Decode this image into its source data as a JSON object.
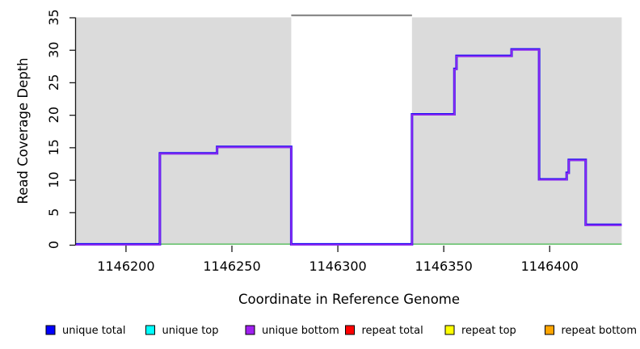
{
  "chart_data": {
    "type": "line",
    "subtype": "step-coverage",
    "title": "",
    "xlabel": "Coordinate in Reference Genome",
    "ylabel": "Read Coverage Depth",
    "xlim": [
      1146176,
      1146435
    ],
    "ylim": [
      0,
      35
    ],
    "x_ticks": [
      1146200,
      1146250,
      1146300,
      1146350,
      1146400
    ],
    "y_ticks": [
      0,
      5,
      10,
      15,
      20,
      25,
      30,
      35
    ],
    "grid": false,
    "colors": {
      "shaded_block": "#dbdbdb",
      "gap_overflow_line": "#8a8a8a",
      "baseline_green": "#69c46f",
      "step_line_core": "#9428f0",
      "step_line_edge": "#2212f2",
      "axis": "#1a1a1a"
    },
    "shaded_regions": [
      {
        "name": "left-gray-block",
        "x1": 1146176,
        "x2": 1146278
      },
      {
        "name": "right-gray-block",
        "x1": 1146335,
        "x2": 1146434
      }
    ],
    "gap_overflow_line": {
      "x1": 1146278,
      "x2": 1146335,
      "value": 35
    },
    "baseline_segments": [
      {
        "x1": 1146216,
        "x2": 1146278,
        "value": 0
      },
      {
        "x1": 1146335,
        "x2": 1146434,
        "value": 0
      }
    ],
    "series": [
      {
        "name": "unique bottom coverage",
        "steps": [
          [
            1146176,
            0
          ],
          [
            1146216,
            14
          ],
          [
            1146243,
            15
          ],
          [
            1146278,
            0
          ],
          [
            1146335,
            20
          ],
          [
            1146355,
            27
          ],
          [
            1146356,
            29
          ],
          [
            1146382,
            30
          ],
          [
            1146395,
            10
          ],
          [
            1146408,
            11
          ],
          [
            1146409,
            13
          ],
          [
            1146417,
            3
          ]
        ],
        "x_end": 1146434
      }
    ],
    "legend": {
      "position": "bottom",
      "entries": [
        {
          "label": "unique total",
          "color": "#0000ff"
        },
        {
          "label": "unique top",
          "color": "#00ffff"
        },
        {
          "label": "unique bottom",
          "color": "#a020f0"
        },
        {
          "label": "repeat total",
          "color": "#ff0000"
        },
        {
          "label": "repeat top",
          "color": "#ffff00"
        },
        {
          "label": "repeat bottom",
          "color": "#ffa500"
        }
      ]
    }
  }
}
